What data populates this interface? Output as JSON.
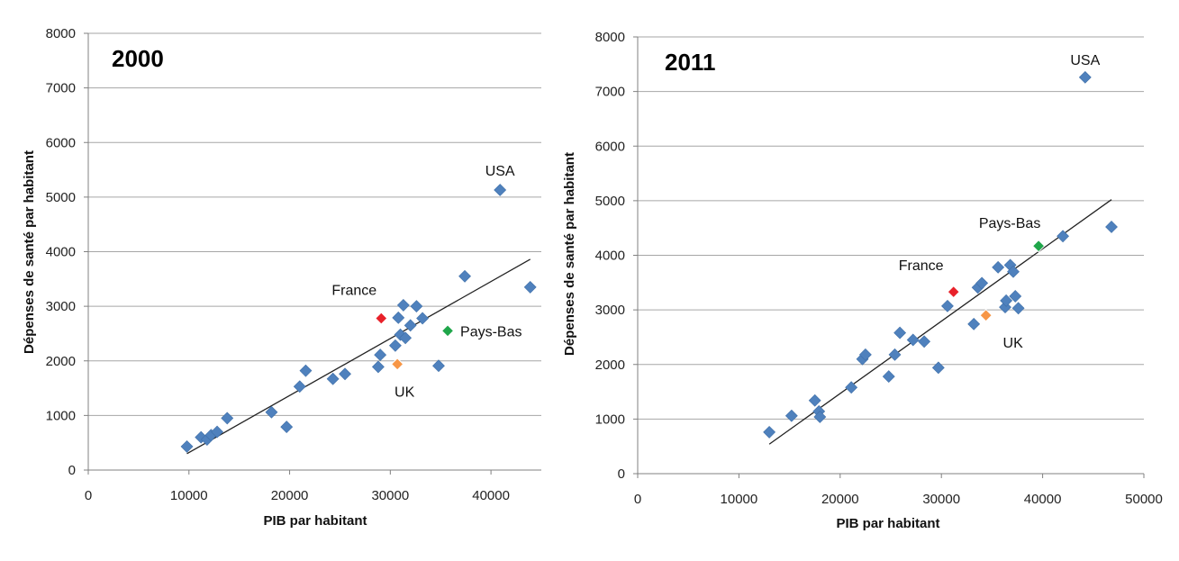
{
  "chart_data": [
    {
      "type": "scatter",
      "title": "2000",
      "xlabel": "PIB par habitant",
      "ylabel": "Dépenses de santé par habitant",
      "xlim": [
        0,
        45000
      ],
      "ylim": [
        0,
        8000
      ],
      "xticks": [
        0,
        10000,
        20000,
        30000,
        40000
      ],
      "yticks": [
        0,
        1000,
        2000,
        3000,
        4000,
        5000,
        6000,
        7000,
        8000
      ],
      "grid": "horizontal",
      "colors": {
        "default": "#4f81bd",
        "France": "#e8212a",
        "UK": "#f79646",
        "Pays-Bas": "#1fa64a",
        "trend": "#222222"
      },
      "points": [
        {
          "x": 9800,
          "y": 430
        },
        {
          "x": 11200,
          "y": 600
        },
        {
          "x": 11800,
          "y": 560
        },
        {
          "x": 12200,
          "y": 640
        },
        {
          "x": 12800,
          "y": 700
        },
        {
          "x": 13800,
          "y": 950
        },
        {
          "x": 18200,
          "y": 1060
        },
        {
          "x": 19700,
          "y": 790
        },
        {
          "x": 21000,
          "y": 1530
        },
        {
          "x": 21600,
          "y": 1820
        },
        {
          "x": 24300,
          "y": 1670
        },
        {
          "x": 25500,
          "y": 1760
        },
        {
          "x": 28800,
          "y": 1890
        },
        {
          "x": 29000,
          "y": 2110
        },
        {
          "x": 30500,
          "y": 2280
        },
        {
          "x": 30800,
          "y": 2790
        },
        {
          "x": 31000,
          "y": 2480
        },
        {
          "x": 31300,
          "y": 3020
        },
        {
          "x": 31500,
          "y": 2420
        },
        {
          "x": 32000,
          "y": 2650
        },
        {
          "x": 32600,
          "y": 3000
        },
        {
          "x": 33200,
          "y": 2780
        },
        {
          "x": 34800,
          "y": 1910
        },
        {
          "x": 37400,
          "y": 3550
        },
        {
          "x": 40900,
          "y": 5130,
          "label": "USA"
        },
        {
          "x": 43900,
          "y": 3350
        },
        {
          "x": 29100,
          "y": 2780,
          "label": "France",
          "highlight": "France"
        },
        {
          "x": 30700,
          "y": 1940,
          "label": "UK",
          "highlight": "UK"
        },
        {
          "x": 35700,
          "y": 2550,
          "label": "Pays-Bas",
          "highlight": "Pays-Bas"
        }
      ],
      "trendline": {
        "x0": 9800,
        "y0": 300,
        "x1": 43900,
        "y1": 3860
      }
    },
    {
      "type": "scatter",
      "title": "2011",
      "xlabel": "PIB par habitant",
      "ylabel": "Dépenses de santé par habitant",
      "xlim": [
        0,
        50000
      ],
      "ylim": [
        0,
        8000
      ],
      "xticks": [
        0,
        10000,
        20000,
        30000,
        40000,
        50000
      ],
      "yticks": [
        0,
        1000,
        2000,
        3000,
        4000,
        5000,
        6000,
        7000,
        8000
      ],
      "grid": "horizontal",
      "colors": {
        "default": "#4f81bd",
        "France": "#e8212a",
        "UK": "#f79646",
        "Pays-Bas": "#1fa64a",
        "trend": "#222222"
      },
      "points": [
        {
          "x": 13000,
          "y": 760
        },
        {
          "x": 15200,
          "y": 1060
        },
        {
          "x": 17500,
          "y": 1340
        },
        {
          "x": 17900,
          "y": 1140
        },
        {
          "x": 18000,
          "y": 1040
        },
        {
          "x": 21100,
          "y": 1580
        },
        {
          "x": 22200,
          "y": 2100
        },
        {
          "x": 22500,
          "y": 2180
        },
        {
          "x": 24800,
          "y": 1780
        },
        {
          "x": 25400,
          "y": 2180
        },
        {
          "x": 25900,
          "y": 2580
        },
        {
          "x": 27200,
          "y": 2450
        },
        {
          "x": 28300,
          "y": 2420
        },
        {
          "x": 29700,
          "y": 1940
        },
        {
          "x": 30600,
          "y": 3070
        },
        {
          "x": 33200,
          "y": 2740
        },
        {
          "x": 33600,
          "y": 3410
        },
        {
          "x": 34000,
          "y": 3490
        },
        {
          "x": 35600,
          "y": 3780
        },
        {
          "x": 36300,
          "y": 3050
        },
        {
          "x": 36400,
          "y": 3170
        },
        {
          "x": 36800,
          "y": 3820
        },
        {
          "x": 37100,
          "y": 3700
        },
        {
          "x": 37300,
          "y": 3250
        },
        {
          "x": 37600,
          "y": 3030
        },
        {
          "x": 42000,
          "y": 4350
        },
        {
          "x": 44200,
          "y": 7260,
          "label": "USA"
        },
        {
          "x": 46800,
          "y": 4520
        },
        {
          "x": 31200,
          "y": 3330,
          "label": "France",
          "highlight": "France"
        },
        {
          "x": 34400,
          "y": 2900,
          "label": "UK",
          "highlight": "UK"
        },
        {
          "x": 39600,
          "y": 4170,
          "label": "Pays-Bas",
          "highlight": "Pays-Bas"
        }
      ],
      "trendline": {
        "x0": 13000,
        "y0": 540,
        "x1": 46800,
        "y1": 5020
      }
    }
  ]
}
